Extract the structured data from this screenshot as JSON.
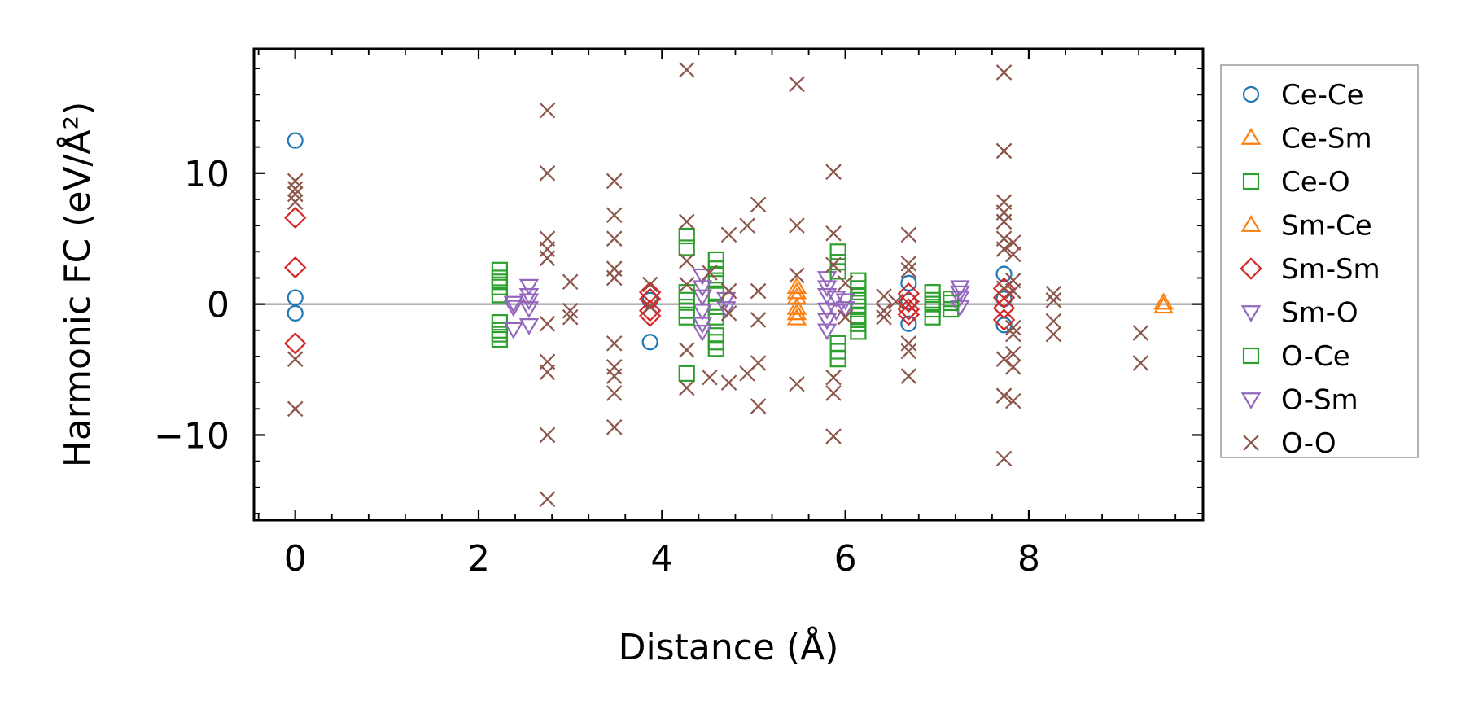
{
  "chart_data": {
    "type": "scatter",
    "xlabel": "Distance (Å)",
    "ylabel": "Harmonic FC (eV/Å²)",
    "xlim": [
      -0.45,
      9.9
    ],
    "ylim": [
      -16.5,
      19.5
    ],
    "x_ticks": [
      0,
      2,
      4,
      6,
      8
    ],
    "x_tick_labels": [
      "0",
      "2",
      "4",
      "6",
      "8"
    ],
    "y_ticks": [
      -10,
      0,
      10
    ],
    "y_tick_labels": [
      "−10",
      "0",
      "10"
    ],
    "reference_line_y": 0,
    "grid": false,
    "legend_position": "outside-right",
    "series": [
      {
        "name": "Ce-Ce",
        "marker": "circle",
        "color": "#1f77b4",
        "points": [
          [
            0,
            12.5
          ],
          [
            0,
            0.5
          ],
          [
            0,
            -0.7
          ],
          [
            3.87,
            -2.9
          ],
          [
            3.87,
            0.3
          ],
          [
            6.69,
            1.6
          ],
          [
            6.69,
            -1.5
          ],
          [
            6.69,
            0.2
          ],
          [
            7.73,
            2.3
          ],
          [
            7.73,
            -1.6
          ],
          [
            7.73,
            0.4
          ]
        ]
      },
      {
        "name": "Ce-Sm",
        "marker": "triangle-up",
        "color": "#ff7f0e",
        "points": [
          [
            5.47,
            1.3
          ],
          [
            5.47,
            0.5
          ],
          [
            5.47,
            -0.3
          ],
          [
            5.47,
            -1.1
          ],
          [
            9.47,
            0.1
          ]
        ]
      },
      {
        "name": "Ce-O",
        "marker": "square",
        "color": "#2ca02c",
        "points": [
          [
            2.23,
            2.6
          ],
          [
            2.23,
            2.0
          ],
          [
            2.23,
            1.3
          ],
          [
            2.23,
            0.7
          ],
          [
            2.23,
            -1.4
          ],
          [
            2.23,
            -2.0
          ],
          [
            2.23,
            -2.7
          ],
          [
            4.27,
            5.2
          ],
          [
            4.27,
            4.3
          ],
          [
            4.27,
            0.3
          ],
          [
            4.27,
            -1.0
          ],
          [
            4.27,
            -5.3
          ],
          [
            4.59,
            3.4
          ],
          [
            4.59,
            2.7
          ],
          [
            4.59,
            1.8
          ],
          [
            4.59,
            0.8
          ],
          [
            4.59,
            -0.2
          ],
          [
            4.59,
            -1.0
          ],
          [
            4.59,
            -2.4
          ],
          [
            4.59,
            -3.4
          ],
          [
            5.92,
            4.0
          ],
          [
            5.92,
            3.2
          ],
          [
            5.92,
            -3.0
          ],
          [
            5.92,
            -4.2
          ],
          [
            6.14,
            1.8
          ],
          [
            6.14,
            1.2
          ],
          [
            6.14,
            0.6
          ],
          [
            6.14,
            -0.2
          ],
          [
            6.14,
            -0.9
          ],
          [
            6.14,
            -1.5
          ],
          [
            6.14,
            -2.1
          ],
          [
            6.95,
            0.9
          ],
          [
            6.95,
            0.3
          ],
          [
            6.95,
            -0.4
          ],
          [
            6.95,
            -1.0
          ],
          [
            7.15,
            0.4
          ],
          [
            7.15,
            -0.4
          ]
        ]
      },
      {
        "name": "Sm-Ce",
        "marker": "triangle-up",
        "color": "#ff7f0e",
        "points": [
          [
            5.47,
            0.9
          ],
          [
            5.47,
            -0.7
          ],
          [
            9.47,
            -0.2
          ]
        ]
      },
      {
        "name": "Sm-Sm",
        "marker": "diamond",
        "color": "#d62728",
        "points": [
          [
            0,
            6.6
          ],
          [
            0,
            2.8
          ],
          [
            0,
            -3.0
          ],
          [
            3.87,
            0.9
          ],
          [
            3.87,
            0.4
          ],
          [
            3.87,
            -0.5
          ],
          [
            3.87,
            -0.9
          ],
          [
            6.69,
            0.8
          ],
          [
            6.69,
            0.2
          ],
          [
            6.69,
            -0.4
          ],
          [
            6.69,
            -0.8
          ],
          [
            7.73,
            1.2
          ],
          [
            7.73,
            0.5
          ],
          [
            7.73,
            -0.3
          ],
          [
            7.73,
            -1.2
          ]
        ]
      },
      {
        "name": "Sm-O",
        "marker": "triangle-down",
        "color": "#9467bd",
        "points": [
          [
            2.38,
            0.1
          ],
          [
            2.38,
            -0.2
          ],
          [
            2.55,
            1.4
          ],
          [
            2.55,
            0.7
          ],
          [
            2.55,
            -0.3
          ],
          [
            2.55,
            -1.6
          ],
          [
            4.44,
            2.2
          ],
          [
            4.44,
            0.6
          ],
          [
            4.44,
            -0.5
          ],
          [
            4.44,
            -2.1
          ],
          [
            5.8,
            2.0
          ],
          [
            5.8,
            0.7
          ],
          [
            5.8,
            -0.4
          ],
          [
            5.8,
            -2.0
          ],
          [
            7.25,
            1.3
          ],
          [
            7.25,
            0.5
          ],
          [
            7.25,
            -0.2
          ]
        ]
      },
      {
        "name": "O-Ce",
        "marker": "square",
        "color": "#2ca02c",
        "points": [
          [
            2.23,
            1.7
          ],
          [
            2.23,
            -2.3
          ],
          [
            4.27,
            0.9
          ],
          [
            4.27,
            -0.5
          ],
          [
            4.59,
            2.2
          ],
          [
            4.59,
            -2.9
          ],
          [
            5.92,
            2.5
          ],
          [
            5.92,
            -3.6
          ],
          [
            6.14,
            0.3
          ],
          [
            6.14,
            -1.2
          ],
          [
            6.95,
            0.0
          ],
          [
            7.15,
            0.1
          ]
        ]
      },
      {
        "name": "O-Sm",
        "marker": "triangle-down",
        "color": "#9467bd",
        "points": [
          [
            2.38,
            -1.9
          ],
          [
            2.55,
            0.3
          ],
          [
            4.44,
            1.3
          ],
          [
            4.44,
            -1.5
          ],
          [
            4.7,
            0.4
          ],
          [
            4.7,
            -0.3
          ],
          [
            5.8,
            1.3
          ],
          [
            5.8,
            -1.2
          ],
          [
            5.9,
            0.5
          ],
          [
            5.9,
            -0.5
          ],
          [
            6.0,
            0.3
          ],
          [
            6.0,
            -0.3
          ],
          [
            7.25,
            0.9
          ]
        ]
      },
      {
        "name": "O-O",
        "marker": "x",
        "color": "#8c564b",
        "points": [
          [
            0,
            9.4
          ],
          [
            0,
            8.8
          ],
          [
            0,
            8.4
          ],
          [
            0,
            7.8
          ],
          [
            0,
            -4.2
          ],
          [
            0,
            -8.0
          ],
          [
            2.75,
            14.8
          ],
          [
            2.75,
            10.0
          ],
          [
            2.75,
            5.0
          ],
          [
            2.75,
            4.2
          ],
          [
            2.75,
            3.5
          ],
          [
            2.75,
            -1.5
          ],
          [
            2.75,
            -4.4
          ],
          [
            2.75,
            -5.2
          ],
          [
            2.75,
            -10.0
          ],
          [
            2.75,
            -14.9
          ],
          [
            3.0,
            1.7
          ],
          [
            3.0,
            -0.5
          ],
          [
            3.0,
            -1.0
          ],
          [
            3.48,
            9.4
          ],
          [
            3.48,
            6.8
          ],
          [
            3.48,
            5.0
          ],
          [
            3.48,
            2.7
          ],
          [
            3.48,
            2.0
          ],
          [
            3.48,
            -3.0
          ],
          [
            3.48,
            -4.8
          ],
          [
            3.48,
            -5.5
          ],
          [
            3.48,
            -6.8
          ],
          [
            3.48,
            -9.4
          ],
          [
            3.87,
            1.5
          ],
          [
            3.87,
            -0.2
          ],
          [
            4.27,
            17.9
          ],
          [
            4.27,
            6.3
          ],
          [
            4.27,
            3.3
          ],
          [
            4.27,
            1.5
          ],
          [
            4.27,
            -3.5
          ],
          [
            4.27,
            -6.4
          ],
          [
            4.52,
            -5.6
          ],
          [
            4.52,
            2.4
          ],
          [
            4.73,
            5.3
          ],
          [
            4.73,
            1.0
          ],
          [
            4.73,
            -0.7
          ],
          [
            4.73,
            -6.0
          ],
          [
            4.93,
            6.0
          ],
          [
            4.93,
            -5.3
          ],
          [
            5.05,
            7.6
          ],
          [
            5.05,
            1.0
          ],
          [
            5.05,
            -1.2
          ],
          [
            5.05,
            -4.5
          ],
          [
            5.05,
            -7.8
          ],
          [
            5.47,
            16.8
          ],
          [
            5.47,
            6.0
          ],
          [
            5.47,
            2.2
          ],
          [
            5.47,
            -6.1
          ],
          [
            5.87,
            10.1
          ],
          [
            5.87,
            5.4
          ],
          [
            5.87,
            3.0
          ],
          [
            5.87,
            -5.6
          ],
          [
            5.87,
            -6.8
          ],
          [
            5.87,
            -10.1
          ],
          [
            6.0,
            1.6
          ],
          [
            6.0,
            -1.0
          ],
          [
            6.42,
            0.6
          ],
          [
            6.42,
            -0.5
          ],
          [
            6.42,
            -1.0
          ],
          [
            6.55,
            0.2
          ],
          [
            6.69,
            5.3
          ],
          [
            6.69,
            3.1
          ],
          [
            6.69,
            2.6
          ],
          [
            6.69,
            -3.0
          ],
          [
            6.69,
            -3.6
          ],
          [
            6.69,
            -5.5
          ],
          [
            7.73,
            17.7
          ],
          [
            7.73,
            11.7
          ],
          [
            7.73,
            7.8
          ],
          [
            7.73,
            7.0
          ],
          [
            7.73,
            6.3
          ],
          [
            7.73,
            5.0
          ],
          [
            7.73,
            4.2
          ],
          [
            7.73,
            1.2
          ],
          [
            7.73,
            -4.2
          ],
          [
            7.73,
            -7.0
          ],
          [
            7.73,
            -11.8
          ],
          [
            7.83,
            4.7
          ],
          [
            7.83,
            3.8
          ],
          [
            7.83,
            1.8
          ],
          [
            7.83,
            1.0
          ],
          [
            7.83,
            -1.8
          ],
          [
            7.83,
            -2.3
          ],
          [
            7.83,
            -3.8
          ],
          [
            7.83,
            -4.8
          ],
          [
            7.83,
            -7.4
          ],
          [
            8.27,
            0.8
          ],
          [
            8.27,
            0.3
          ],
          [
            8.27,
            -1.3
          ],
          [
            8.27,
            -2.3
          ],
          [
            9.22,
            -2.2
          ],
          [
            9.22,
            -4.5
          ]
        ]
      }
    ]
  }
}
